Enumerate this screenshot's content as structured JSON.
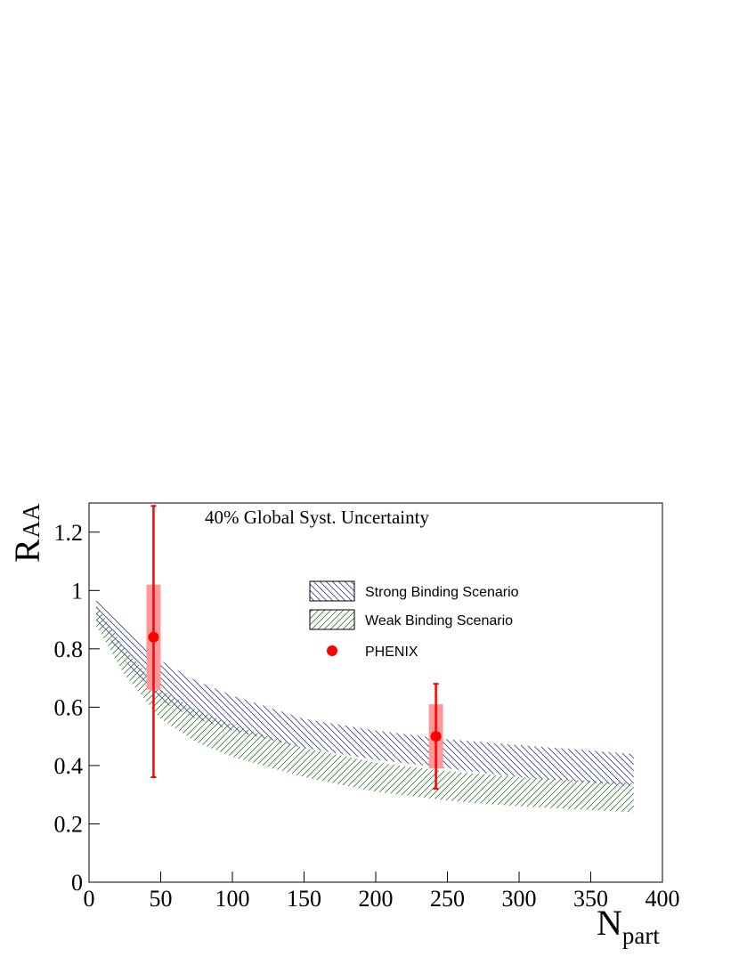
{
  "chart_data": {
    "type": "scatter",
    "annotation": "40% Global Syst. Uncertainty",
    "xlabel": {
      "main": "N",
      "sub": "part"
    },
    "ylabel": {
      "main": "R",
      "sub": "AA"
    },
    "xlim": [
      0,
      400
    ],
    "ylim": [
      0,
      1.3
    ],
    "xticks": [
      0,
      50,
      100,
      150,
      200,
      250,
      300,
      350,
      400
    ],
    "yticks": [
      0,
      0.2,
      0.4,
      0.6,
      0.8,
      1,
      1.2
    ],
    "series": [
      {
        "type": "band",
        "name": "Strong Binding Scenario",
        "color": "#3b3b8f",
        "hatch": "backslash",
        "x": [
          5,
          25,
          50,
          75,
          100,
          150,
          200,
          250,
          300,
          380
        ],
        "upper": [
          0.97,
          0.87,
          0.76,
          0.69,
          0.64,
          0.56,
          0.52,
          0.49,
          0.47,
          0.44
        ],
        "lower": [
          0.9,
          0.76,
          0.62,
          0.56,
          0.52,
          0.46,
          0.42,
          0.39,
          0.36,
          0.33
        ]
      },
      {
        "type": "band",
        "name": "Weak Binding Scenario",
        "color": "#3a7a3a",
        "hatch": "slash",
        "x": [
          5,
          25,
          50,
          75,
          100,
          150,
          200,
          250,
          300,
          380
        ],
        "upper": [
          0.95,
          0.8,
          0.66,
          0.59,
          0.54,
          0.46,
          0.41,
          0.38,
          0.36,
          0.34
        ],
        "lower": [
          0.88,
          0.71,
          0.56,
          0.48,
          0.43,
          0.36,
          0.31,
          0.28,
          0.26,
          0.24
        ]
      },
      {
        "type": "points",
        "name": "PHENIX",
        "color": "#ff0000",
        "syst_color": "#ff9999",
        "x": [
          45,
          242
        ],
        "values": [
          0.84,
          0.5
        ],
        "err_plus": [
          0.45,
          0.18
        ],
        "err_minus": [
          0.48,
          0.18
        ],
        "syst_plus": [
          0.18,
          0.11
        ],
        "syst_minus": [
          0.18,
          0.11
        ]
      }
    ]
  }
}
